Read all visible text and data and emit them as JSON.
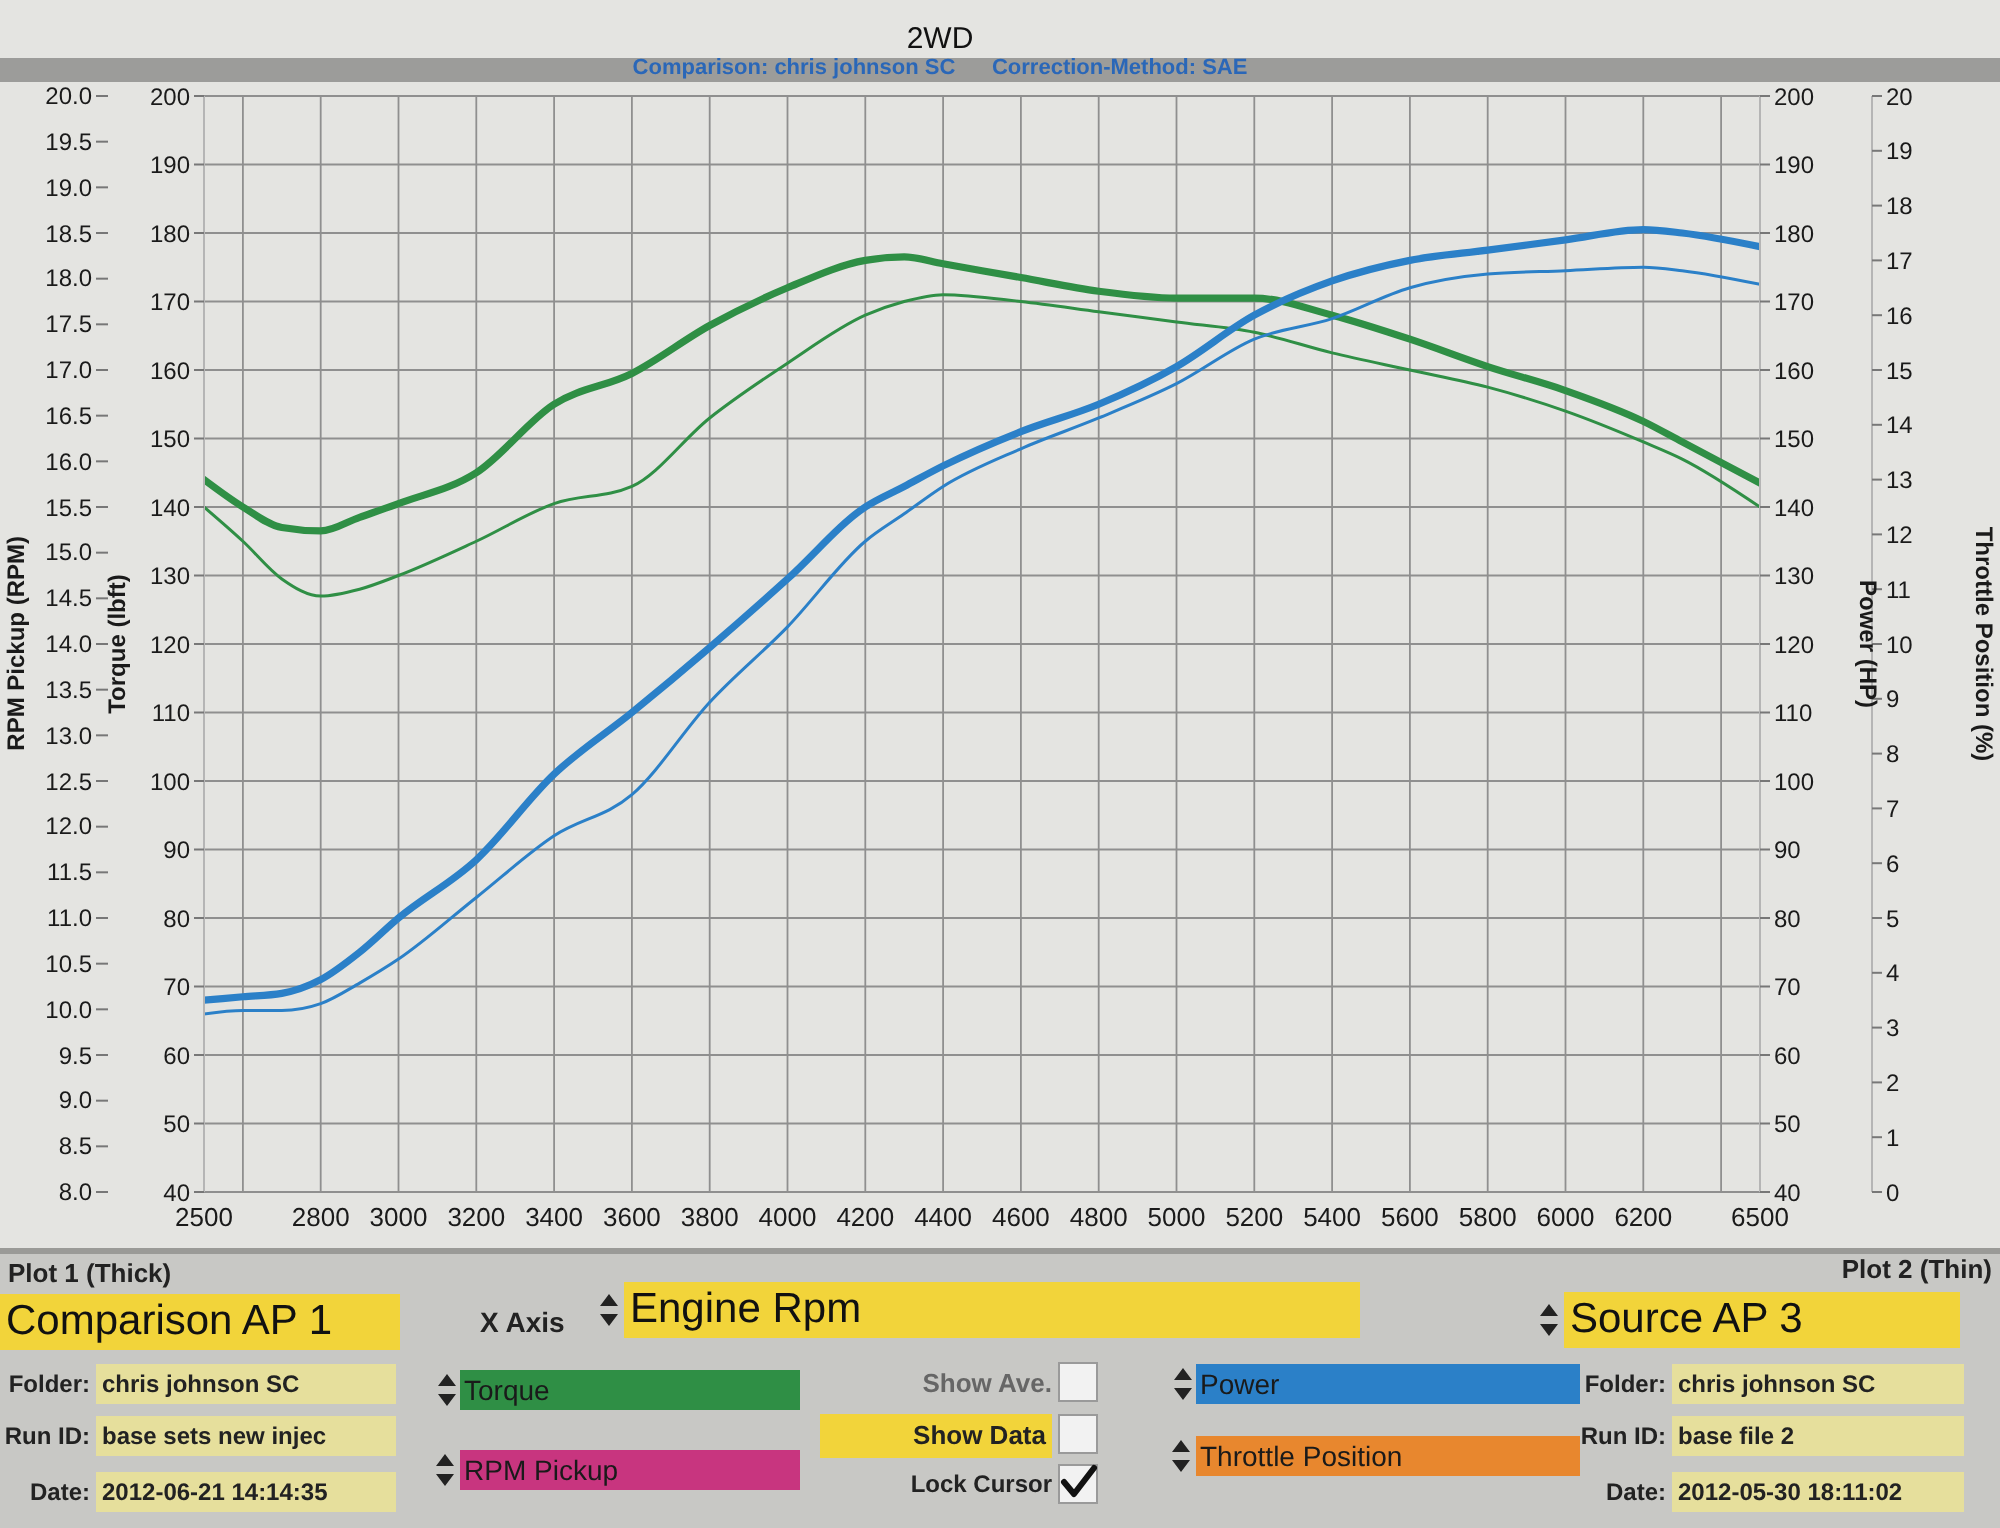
{
  "chart_data": {
    "type": "line",
    "title": "2WD",
    "subtitle": "Comparison: chris johnson SC      Correction-Method: SAE",
    "ylabel": "Torque (lbft)",
    "y2label": "Power (HP)",
    "y3label": "Throttle Position (%)",
    "xlim": [
      2500,
      6500
    ],
    "xticks": [
      2500,
      {
        "value": 2600,
        "label": null
      },
      2800,
      3000,
      3200,
      3400,
      3600,
      3800,
      4000,
      4200,
      4400,
      4600,
      4800,
      5000,
      5200,
      5400,
      5600,
      5800,
      6000,
      6200,
      {
        "value": 6400,
        "label": null
      },
      6500
    ],
    "ylim": [
      40,
      200
    ],
    "yticks": [
      40,
      50,
      60,
      70,
      80,
      90,
      100,
      110,
      120,
      130,
      140,
      150,
      160,
      170,
      180,
      190,
      200
    ],
    "y2lim": [
      40,
      200
    ],
    "y2ticks": [
      40,
      50,
      60,
      70,
      80,
      90,
      100,
      110,
      120,
      130,
      140,
      150,
      160,
      170,
      180,
      190,
      200
    ],
    "y3lim": [
      0,
      20
    ],
    "y3ticks": [
      0,
      1,
      2,
      3,
      4,
      5,
      6,
      7,
      8,
      9,
      10,
      11,
      12,
      13,
      14,
      15,
      16,
      17,
      18,
      19,
      20
    ],
    "grid": true,
    "legend": "bottom",
    "x": [
      2500,
      2600,
      2700,
      2800,
      2900,
      3000,
      3200,
      3400,
      3600,
      3800,
      4000,
      4200,
      4300,
      4400,
      4600,
      4800,
      5000,
      5200,
      5400,
      5600,
      5800,
      6000,
      6200,
      6300,
      6500
    ],
    "series": [
      {
        "name": "Torque",
        "color": "#2f8f45",
        "values": [
          144,
          140,
          137,
          136.5,
          138.5,
          140.5,
          145,
          155,
          159.5,
          166.5,
          172,
          176,
          176.5,
          175.5,
          173.5,
          171.5,
          170.5,
          170.5,
          168,
          164.5,
          160.5,
          157,
          152.5,
          149.5,
          143.5
        ]
      },
      {
        "color": "#2f8f45",
        "values": [
          140,
          135,
          129.5,
          127,
          128,
          130,
          135,
          140.5,
          143,
          153,
          161,
          168,
          170,
          171,
          170,
          168.5,
          167,
          165.5,
          162.5,
          160,
          157.5,
          154,
          149.5,
          147,
          140
        ]
      },
      {
        "name": "Power",
        "color": "#2b80c8",
        "values": [
          68,
          68.5,
          69,
          71,
          75,
          80,
          88.5,
          101,
          110,
          119.5,
          129.5,
          140,
          143,
          146,
          151,
          155,
          160.5,
          168,
          173,
          176,
          177.5,
          179,
          180.5,
          180,
          178
        ]
      },
      {
        "color": "#2b80c8",
        "values": [
          66,
          66.5,
          66.5,
          67.5,
          70.5,
          74,
          83,
          92,
          98,
          111.5,
          122.5,
          135,
          139,
          143,
          148.5,
          153,
          158,
          164.5,
          167.5,
          172,
          174,
          174.5,
          175,
          174.5,
          172.5
        ]
      }
    ],
    "annotations": [
      "Plot 1 (Thick)",
      "Comparison AP 1",
      "Folder:",
      "chris johnson SC",
      "Run ID:",
      "base sets new injec",
      "Date:",
      "2012-06-21 14:14:35",
      "X Axis",
      "Engine Rpm",
      "Show Ave.",
      "Show Data",
      "Lock Cursor",
      "Plot 2 (Thin)",
      "Source AP 3",
      "Folder:",
      "chris johnson SC",
      "Run ID:",
      "base file 2",
      "Date:",
      "2012-05-30 18:11:02",
      "RPM Pickup",
      "Throttle Position",
      "RPM Pickup (RPM)",
      "8.0",
      "8.5",
      "9.0",
      "9.5",
      "10.0",
      "10.5",
      "11.0",
      "11.5",
      "12.0",
      "12.5",
      "13.0",
      "13.5",
      "14.0",
      "14.5",
      "15.0",
      "15.5",
      "16.0",
      "16.5",
      "17.0",
      "17.5",
      "18.0",
      "18.5",
      "19.0",
      "19.5",
      "20.0"
    ]
  }
}
